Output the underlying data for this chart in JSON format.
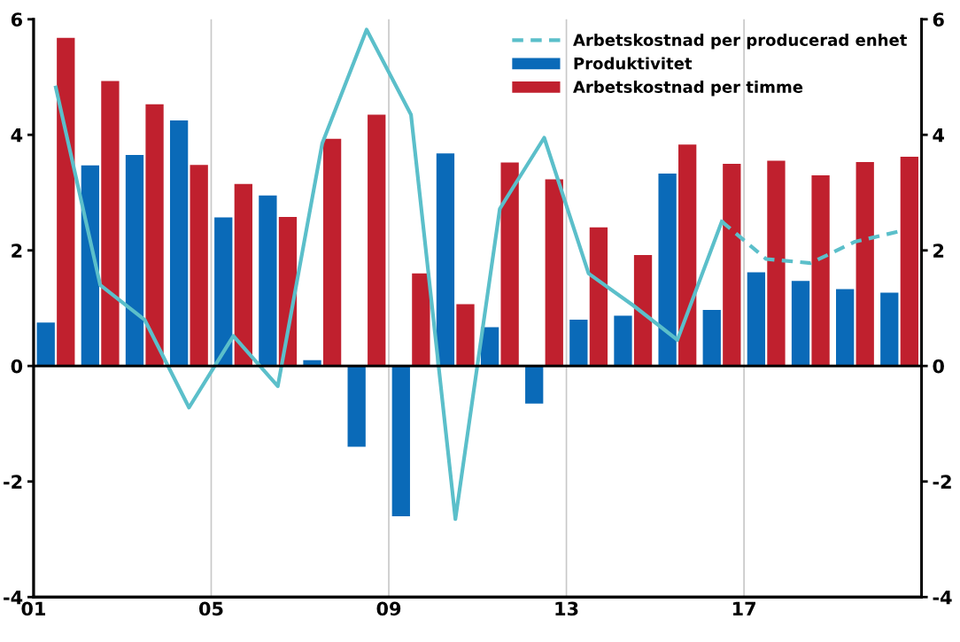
{
  "chart_data": {
    "type": "bar",
    "x": [
      2001.5,
      2002.5,
      2003.5,
      2004.5,
      2005.5,
      2006.5,
      2007.5,
      2008.5,
      2009.5,
      2010.5,
      2011.5,
      2012.5,
      2013.5,
      2014.5,
      2015.5,
      2016.5,
      2017.5,
      2018.5,
      2019.5,
      2020.5
    ],
    "series": [
      {
        "name": "Arbetskostnad per producerad enhet",
        "type": "line",
        "line_style": "dashed",
        "color": "#5bbfca",
        "x": [
          2016.5,
          2017.5,
          2018.5,
          2019.5,
          2020.5
        ],
        "values": [
          2.5,
          1.85,
          1.78,
          2.15,
          2.33
        ]
      },
      {
        "type": "line",
        "line_style": "solid",
        "color": "#5bbfca",
        "x": [
          2001.5,
          2002.5,
          2003.5,
          2004.5,
          2005.5,
          2006.5,
          2007.5,
          2008.5,
          2009.5,
          2010.5,
          2011.5,
          2012.5,
          2013.5,
          2014.5,
          2015.5,
          2016.5
        ],
        "values": [
          4.82,
          1.4,
          0.8,
          -0.72,
          0.52,
          -0.35,
          3.85,
          5.82,
          4.35,
          -2.65,
          2.72,
          3.95,
          1.6,
          1.05,
          0.45,
          2.5
        ]
      },
      {
        "name": "Produktivitet",
        "color": "#0a6ab8",
        "values": [
          0.75,
          3.47,
          3.65,
          4.25,
          2.57,
          2.95,
          0.1,
          -1.4,
          -2.6,
          3.68,
          0.67,
          -0.65,
          0.8,
          0.87,
          3.33,
          0.97,
          1.62,
          1.47,
          1.33,
          1.27
        ]
      },
      {
        "name": "Arbetskostnad per timme",
        "color": "#c0202e",
        "values": [
          5.68,
          4.93,
          4.53,
          3.48,
          3.15,
          2.58,
          3.93,
          4.35,
          1.6,
          1.07,
          3.52,
          3.23,
          2.4,
          1.92,
          3.83,
          3.5,
          3.55,
          3.3,
          3.53,
          3.62
        ]
      }
    ],
    "xlim": [
      2001,
      2021
    ],
    "xticks": [
      {
        "value": 2001,
        "label": "01"
      },
      {
        "value": 2005,
        "label": "05"
      },
      {
        "value": 2009,
        "label": "09"
      },
      {
        "value": 2013,
        "label": "13"
      },
      {
        "value": 2017,
        "label": "17"
      }
    ],
    "ylim": [
      -4,
      6
    ],
    "yticks": [
      -4,
      -2,
      0,
      2,
      4,
      6
    ],
    "y2lim": [
      -4,
      6
    ],
    "y2ticks": [
      -4,
      -2,
      0,
      2,
      4,
      6
    ],
    "ref_lines": [
      {
        "axis": "y",
        "value": 0,
        "color": "#000000"
      }
    ],
    "grid": "x",
    "legend": "top right"
  }
}
